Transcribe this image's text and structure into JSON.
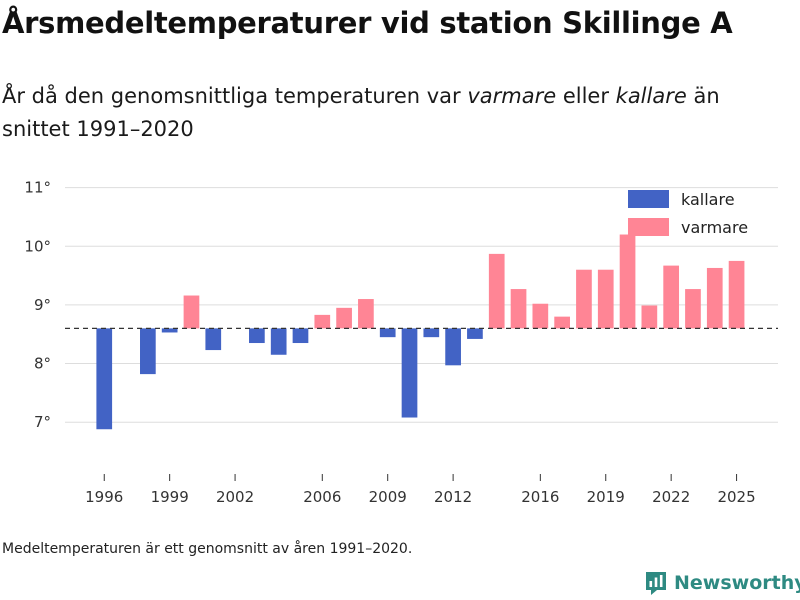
{
  "title": "Årsmedeltemperaturer vid station Skillinge A",
  "subtitle": {
    "part1": "År då den genomsnittliga temperaturen var ",
    "emph1": "varmare",
    "part2": " eller ",
    "emph2": "kallare",
    "part3": " än snittet 1991–2020"
  },
  "note": "Medeltemperaturen är ett genomsnitt av åren 1991–2020.",
  "brand": {
    "name": "Newsworthy",
    "icon": "newsworthy-logo-icon",
    "color": "#2e8a82"
  },
  "colors": {
    "kallare": "#4263c5",
    "varmare": "#ff8595",
    "grid": "#dddddd",
    "baseline": "#333333",
    "axis_text": "#333333"
  },
  "chart_data": {
    "type": "bar",
    "baseline": 8.6,
    "ylim": [
      6.1,
      11.3
    ],
    "yticks": [
      7,
      8,
      9,
      10,
      11
    ],
    "ytick_labels": [
      "7°",
      "8°",
      "9°",
      "10°",
      "11°"
    ],
    "xticks": [
      1996,
      1999,
      2002,
      2006,
      2009,
      2012,
      2016,
      2019,
      2022,
      2025
    ],
    "xtick_labels": [
      "1996",
      "1999",
      "2002",
      "2006",
      "2009",
      "2012",
      "2016",
      "2019",
      "2022",
      "2025"
    ],
    "xlim": [
      1994.2,
      2026.9
    ],
    "legend": {
      "position": "top-right",
      "entries": [
        {
          "key": "kallare",
          "label": "kallare"
        },
        {
          "key": "varmare",
          "label": "varmare"
        }
      ]
    },
    "series": [
      {
        "year": 1996,
        "value": 6.88
      },
      {
        "year": 1998,
        "value": 7.82
      },
      {
        "year": 1999,
        "value": 8.53
      },
      {
        "year": 2000,
        "value": 9.16
      },
      {
        "year": 2001,
        "value": 8.23
      },
      {
        "year": 2003,
        "value": 8.35
      },
      {
        "year": 2004,
        "value": 8.15
      },
      {
        "year": 2005,
        "value": 8.35
      },
      {
        "year": 2006,
        "value": 8.83
      },
      {
        "year": 2007,
        "value": 8.95
      },
      {
        "year": 2008,
        "value": 9.1
      },
      {
        "year": 2009,
        "value": 8.45
      },
      {
        "year": 2010,
        "value": 7.08
      },
      {
        "year": 2011,
        "value": 8.45
      },
      {
        "year": 2012,
        "value": 7.97
      },
      {
        "year": 2013,
        "value": 8.42
      },
      {
        "year": 2014,
        "value": 9.87
      },
      {
        "year": 2015,
        "value": 9.27
      },
      {
        "year": 2016,
        "value": 9.02
      },
      {
        "year": 2017,
        "value": 8.8
      },
      {
        "year": 2018,
        "value": 9.6
      },
      {
        "year": 2019,
        "value": 9.6
      },
      {
        "year": 2020,
        "value": 10.2
      },
      {
        "year": 2021,
        "value": 8.99
      },
      {
        "year": 2022,
        "value": 9.67
      },
      {
        "year": 2023,
        "value": 9.27
      },
      {
        "year": 2024,
        "value": 9.63
      },
      {
        "year": 2025,
        "value": 9.75
      }
    ]
  }
}
